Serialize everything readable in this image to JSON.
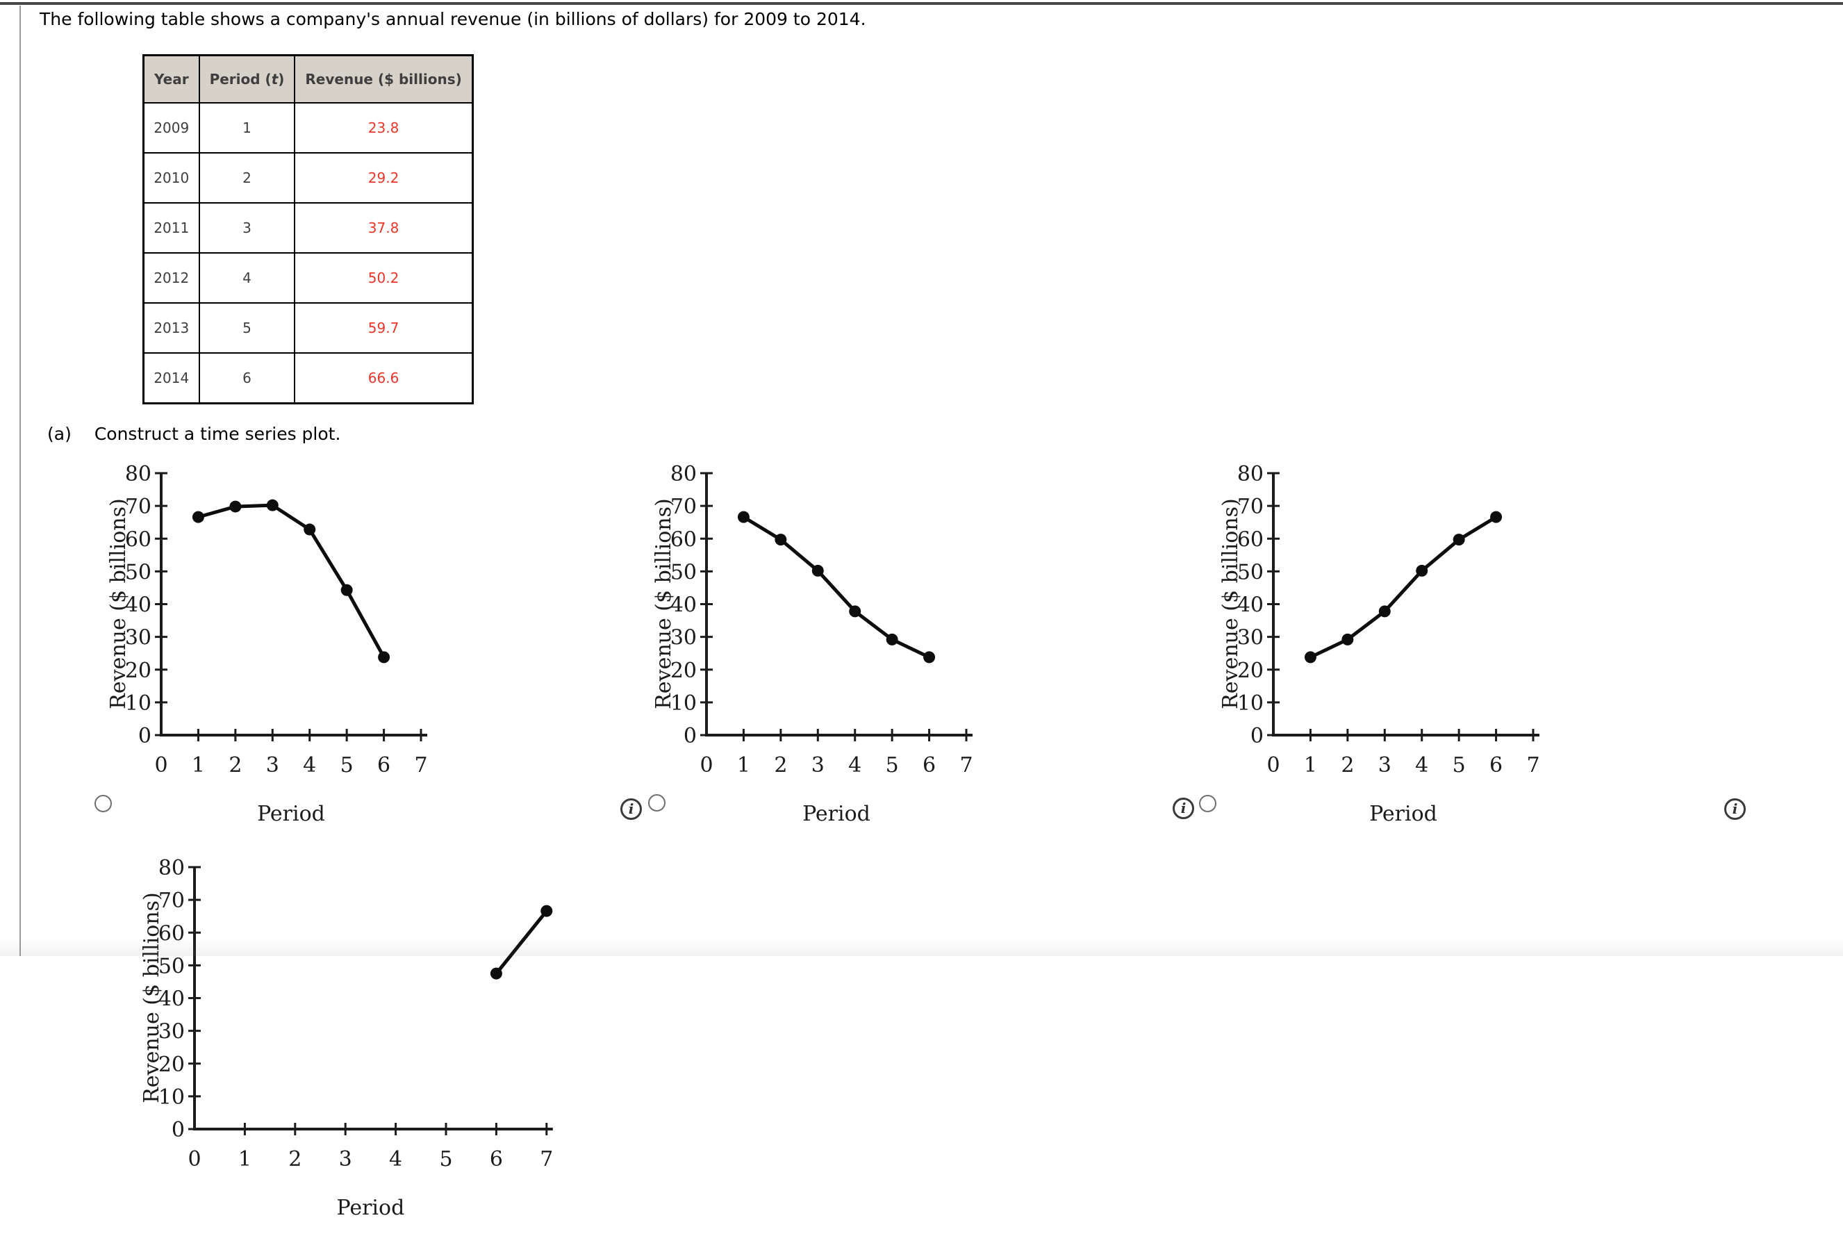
{
  "page": {
    "problem_text": "The following table shows a company's annual revenue (in billions of dollars) for 2009 to 2014.",
    "part_label": "(a)",
    "part_text": "Construct a time series plot."
  },
  "table": {
    "headers": {
      "year": "Year",
      "period_pre": "Period (",
      "period_var": "t",
      "period_post": ")",
      "revenue": "Revenue ($ billions)"
    },
    "rows": [
      {
        "year": "2009",
        "period": "1",
        "revenue": "23.8"
      },
      {
        "year": "2010",
        "period": "2",
        "revenue": "29.2"
      },
      {
        "year": "2011",
        "period": "3",
        "revenue": "37.8"
      },
      {
        "year": "2012",
        "period": "4",
        "revenue": "50.2"
      },
      {
        "year": "2013",
        "period": "5",
        "revenue": "59.7"
      },
      {
        "year": "2014",
        "period": "6",
        "revenue": "66.6"
      }
    ],
    "revenue_color": "#e8362a",
    "header_bg": "#d6d2ca"
  },
  "icons": {
    "info_glyph": "i"
  },
  "chart_data": [
    {
      "type": "line",
      "position": "row1-left",
      "x": [
        1,
        2,
        3,
        4,
        5,
        6
      ],
      "values": [
        66.6,
        69.8,
        70.2,
        62.8,
        44.3,
        23.8
      ],
      "xlabel": "Period",
      "ylabel": "Revenue ($ billions)",
      "xlim": [
        0,
        7
      ],
      "ylim": [
        0,
        80
      ],
      "xticks": [
        0,
        1,
        2,
        3,
        4,
        5,
        6,
        7
      ],
      "yticks": [
        0,
        10,
        20,
        30,
        40,
        50,
        60,
        70,
        80
      ],
      "marker": "filled-circle",
      "grid": false,
      "color": "#0d0d0d"
    },
    {
      "type": "line",
      "position": "row1-middle",
      "x": [
        1,
        2,
        3,
        4,
        5,
        6
      ],
      "values": [
        66.6,
        59.7,
        50.2,
        37.8,
        29.2,
        23.8
      ],
      "xlabel": "Period",
      "ylabel": "Revenue ($ billions)",
      "xlim": [
        0,
        7
      ],
      "ylim": [
        0,
        80
      ],
      "xticks": [
        0,
        1,
        2,
        3,
        4,
        5,
        6,
        7
      ],
      "yticks": [
        0,
        10,
        20,
        30,
        40,
        50,
        60,
        70,
        80
      ],
      "marker": "filled-circle",
      "grid": false,
      "color": "#0d0d0d"
    },
    {
      "type": "line",
      "position": "row1-right",
      "x": [
        1,
        2,
        3,
        4,
        5,
        6
      ],
      "values": [
        23.8,
        29.2,
        37.8,
        50.2,
        59.7,
        66.6
      ],
      "xlabel": "Period",
      "ylabel": "Revenue ($ billions)",
      "xlim": [
        0,
        7
      ],
      "ylim": [
        0,
        80
      ],
      "xticks": [
        0,
        1,
        2,
        3,
        4,
        5,
        6,
        7
      ],
      "yticks": [
        0,
        10,
        20,
        30,
        40,
        50,
        60,
        70,
        80
      ],
      "marker": "filled-circle",
      "grid": false,
      "color": "#0d0d0d"
    },
    {
      "type": "line",
      "position": "row2-left",
      "partially_visible": true,
      "x": [
        6,
        7
      ],
      "values": [
        47.5,
        66.6
      ],
      "xlabel": "Period",
      "ylabel": "Revenue ($ billions)",
      "xlim": [
        0,
        7
      ],
      "ylim": [
        0,
        80
      ],
      "xticks": [
        0,
        1,
        2,
        3,
        4,
        5,
        6,
        7
      ],
      "yticks": [
        0,
        10,
        20,
        30,
        40,
        50,
        60,
        70,
        80
      ],
      "marker": "filled-circle",
      "grid": false,
      "color": "#0d0d0d"
    }
  ]
}
